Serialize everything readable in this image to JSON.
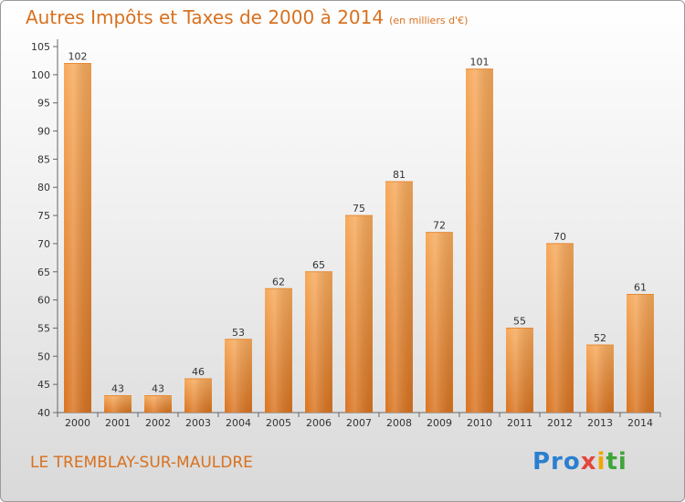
{
  "title": "Autres Impôts et Taxes de 2000 à 2014",
  "unit": "(en milliers d'€)",
  "subject": "LE TREMBLAY-SUR-MAULDRE",
  "logo": {
    "p1": "Pro",
    "p2": "x",
    "p3": "i",
    "p4": "ti"
  },
  "colors": {
    "bar_light": "#f7a95a",
    "bar_dark": "#d9731f",
    "title": "#d8711f"
  },
  "chart_data": {
    "type": "bar",
    "title": "Autres Impôts et Taxes de 2000 à 2014",
    "xlabel": "",
    "ylabel": "",
    "ylim": [
      40,
      105
    ],
    "yticks": [
      40,
      45,
      50,
      55,
      60,
      65,
      70,
      75,
      80,
      85,
      90,
      95,
      100,
      105
    ],
    "grid": false,
    "categories": [
      "2000",
      "2001",
      "2002",
      "2003",
      "2004",
      "2005",
      "2006",
      "2007",
      "2008",
      "2009",
      "2010",
      "2011",
      "2012",
      "2013",
      "2014"
    ],
    "values": [
      102,
      43,
      43,
      46,
      53,
      62,
      65,
      75,
      81,
      72,
      101,
      55,
      70,
      52,
      61
    ]
  }
}
